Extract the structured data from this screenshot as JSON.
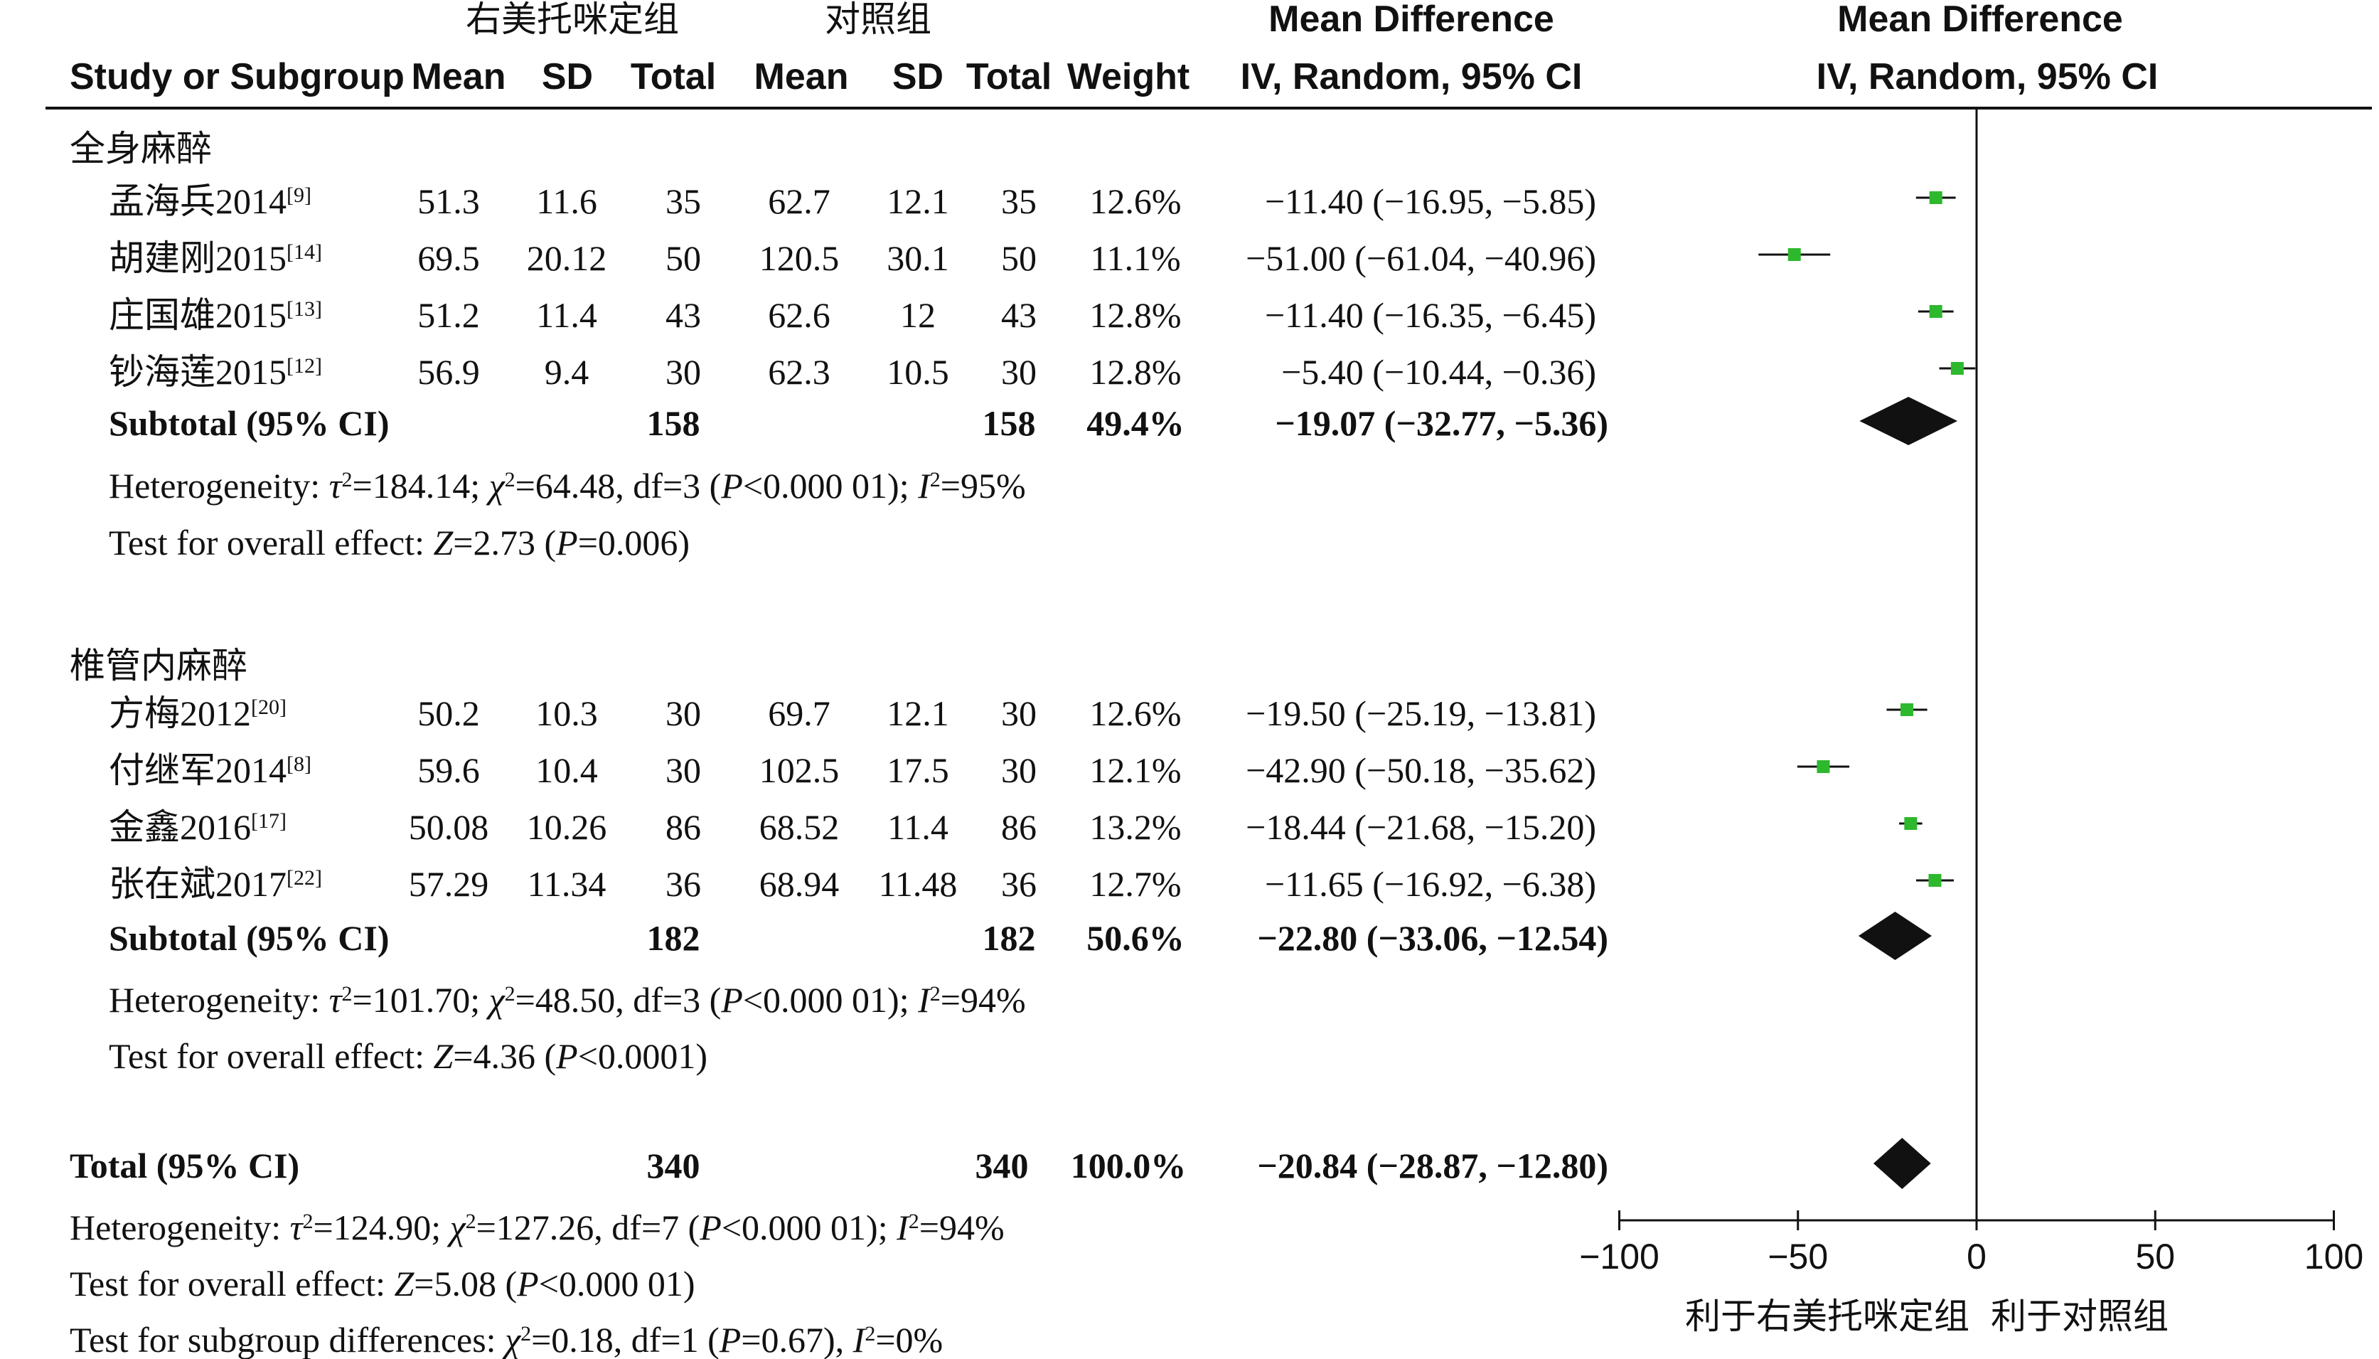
{
  "header": {
    "group_exp": "右美托咪定组",
    "group_ctl": "对照组",
    "md_title_left": "Mean Difference",
    "md_sub_left": "IV, Random, 95% CI",
    "md_title_right": "Mean Difference",
    "md_sub_right": "IV, Random, 95% CI",
    "col_study": "Study or Subgroup",
    "col_mean_exp": "Mean",
    "col_sd_exp": "SD",
    "col_total_exp": "Total",
    "col_mean_ctl": "Mean",
    "col_sd_ctl": "SD",
    "col_total_ctl": "Total",
    "col_weight": "Weight"
  },
  "colors": {
    "square": "#2eb82e",
    "diamond": "#111111",
    "line": "#111111"
  },
  "subgroups": [
    {
      "name": "全身麻醉",
      "studies": [
        {
          "study": "孟海兵2014",
          "ref": "[9]",
          "mean_e": "51.3",
          "sd_e": "11.6",
          "n_e": "35",
          "mean_c": "62.7",
          "sd_c": "12.1",
          "n_c": "35",
          "weight": "12.6%",
          "ci_text": "−11.40 (−16.95, −5.85)",
          "md": -11.4,
          "lo": -16.95,
          "hi": -5.85
        },
        {
          "study": "胡建刚2015",
          "ref": "[14]",
          "mean_e": "69.5",
          "sd_e": "20.12",
          "n_e": "50",
          "mean_c": "120.5",
          "sd_c": "30.1",
          "n_c": "50",
          "weight": "11.1%",
          "ci_text": "−51.00 (−61.04, −40.96)",
          "md": -51.0,
          "lo": -61.04,
          "hi": -40.96
        },
        {
          "study": "庄国雄2015",
          "ref": "[13]",
          "mean_e": "51.2",
          "sd_e": "11.4",
          "n_e": "43",
          "mean_c": "62.6",
          "sd_c": "12",
          "n_c": "43",
          "weight": "12.8%",
          "ci_text": "−11.40 (−16.35, −6.45)",
          "md": -11.4,
          "lo": -16.35,
          "hi": -6.45
        },
        {
          "study": "钞海莲2015",
          "ref": "[12]",
          "mean_e": "56.9",
          "sd_e": "9.4",
          "n_e": "30",
          "mean_c": "62.3",
          "sd_c": "10.5",
          "n_c": "30",
          "weight": "12.8%",
          "ci_text": "−5.40 (−10.44, −0.36)",
          "md": -5.4,
          "lo": -10.44,
          "hi": -0.36
        }
      ],
      "subtotal": {
        "label": "Subtotal (95% CI)",
        "n_e": "158",
        "n_c": "158",
        "weight": "49.4%",
        "ci_text": "−19.07 (−32.77, −5.36)",
        "md": -19.07,
        "lo": -32.77,
        "hi": -5.36
      },
      "heterogeneity": {
        "prefix": "Heterogeneity: ",
        "tau": "τ",
        "tau_sup": "2",
        "tau_val": "=184.14; ",
        "chi": "χ",
        "chi_sup": "2",
        "chi_val": "=64.48, df=3 (",
        "p": "P",
        "p_val": "<0.000 01); ",
        "i": "I",
        "i_sup": "2",
        "i_val": "=95%"
      },
      "overall": {
        "prefix": "Test for overall effect: ",
        "z": "Z",
        "z_val": "=2.73 (",
        "p": "P",
        "p_val": "=0.006)"
      }
    },
    {
      "name": "椎管内麻醉",
      "studies": [
        {
          "study": "方梅2012",
          "ref": "[20]",
          "mean_e": "50.2",
          "sd_e": "10.3",
          "n_e": "30",
          "mean_c": "69.7",
          "sd_c": "12.1",
          "n_c": "30",
          "weight": "12.6%",
          "ci_text": "−19.50 (−25.19, −13.81)",
          "md": -19.5,
          "lo": -25.19,
          "hi": -13.81
        },
        {
          "study": "付继军2014",
          "ref": "[8]",
          "mean_e": "59.6",
          "sd_e": "10.4",
          "n_e": "30",
          "mean_c": "102.5",
          "sd_c": "17.5",
          "n_c": "30",
          "weight": "12.1%",
          "ci_text": "−42.90 (−50.18, −35.62)",
          "md": -42.9,
          "lo": -50.18,
          "hi": -35.62
        },
        {
          "study": "金鑫2016",
          "ref": "[17]",
          "mean_e": "50.08",
          "sd_e": "10.26",
          "n_e": "86",
          "mean_c": "68.52",
          "sd_c": "11.4",
          "n_c": "86",
          "weight": "13.2%",
          "ci_text": "−18.44 (−21.68, −15.20)",
          "md": -18.44,
          "lo": -21.68,
          "hi": -15.2
        },
        {
          "study": "张在斌2017",
          "ref": "[22]",
          "mean_e": "57.29",
          "sd_e": "11.34",
          "n_e": "36",
          "mean_c": "68.94",
          "sd_c": "11.48",
          "n_c": "36",
          "weight": "12.7%",
          "ci_text": "−11.65 (−16.92, −6.38)",
          "md": -11.65,
          "lo": -16.92,
          "hi": -6.38
        }
      ],
      "subtotal": {
        "label": "Subtotal (95% CI)",
        "n_e": "182",
        "n_c": "182",
        "weight": "50.6%",
        "ci_text": "−22.80 (−33.06, −12.54)",
        "md": -22.8,
        "lo": -33.06,
        "hi": -12.54
      },
      "heterogeneity": {
        "prefix": "Heterogeneity: ",
        "tau": "τ",
        "tau_sup": "2",
        "tau_val": "=101.70; ",
        "chi": "χ",
        "chi_sup": "2",
        "chi_val": "=48.50, df=3 (",
        "p": "P",
        "p_val": "<0.000 01); ",
        "i": "I",
        "i_sup": "2",
        "i_val": "=94%"
      },
      "overall": {
        "prefix": "Test for overall effect: ",
        "z": "Z",
        "z_val": "=4.36 (",
        "p": "P",
        "p_val": "<0.0001)"
      }
    }
  ],
  "total": {
    "label": "Total (95% CI)",
    "n_e": "340",
    "n_c": "340",
    "weight": "100.0%",
    "ci_text": "−20.84 (−28.87, −12.80)",
    "md": -20.84,
    "lo": -28.87,
    "hi": -12.8,
    "heterogeneity": {
      "prefix": "Heterogeneity: ",
      "tau": "τ",
      "tau_sup": "2",
      "tau_val": "=124.90; ",
      "chi": "χ",
      "chi_sup": "2",
      "chi_val": "=127.26, df=7 (",
      "p": "P",
      "p_val": "<0.000 01); ",
      "i": "I",
      "i_sup": "2",
      "i_val": "=94%"
    },
    "overall": {
      "prefix": "Test for overall effect: ",
      "z": "Z",
      "z_val": "=5.08 (",
      "p": "P",
      "p_val": "<0.000 01)"
    },
    "subgroup_diff": {
      "prefix": "Test for subgroup differences: ",
      "chi": "χ",
      "chi_sup": "2",
      "chi_val": "=0.18, df=1 (",
      "p": "P",
      "p_val": "=0.67), ",
      "i": "I",
      "i_sup": "2",
      "i_val": "=0%"
    }
  },
  "axis": {
    "ticks": [
      -100,
      -50,
      0,
      50,
      100
    ],
    "tick_labels": [
      "−100",
      "−50",
      "0",
      "50",
      "100"
    ],
    "favours_left": "利于右美托咪定组",
    "favours_right": "利于对照组"
  },
  "chart_data": {
    "type": "forest",
    "xlim": [
      -100,
      100
    ],
    "null_line": 0,
    "series": [
      {
        "name": "全身麻醉",
        "md": [
          -11.4,
          -51.0,
          -11.4,
          -5.4
        ],
        "lower": [
          -16.95,
          -61.04,
          -16.35,
          -10.44
        ],
        "upper": [
          -5.85,
          -40.96,
          -6.45,
          -0.36
        ],
        "weights": [
          12.6,
          11.1,
          12.8,
          12.8
        ]
      },
      {
        "name": "椎管内麻醉",
        "md": [
          -19.5,
          -42.9,
          -18.44,
          -11.65
        ],
        "lower": [
          -25.19,
          -50.18,
          -21.68,
          -16.92
        ],
        "upper": [
          -13.81,
          -35.62,
          -15.2,
          -6.38
        ],
        "weights": [
          12.6,
          12.1,
          13.2,
          12.7
        ]
      }
    ],
    "subtotals": [
      {
        "md": -19.07,
        "lower": -32.77,
        "upper": -5.36,
        "weight": 49.4
      },
      {
        "md": -22.8,
        "lower": -33.06,
        "upper": -12.54,
        "weight": 50.6
      }
    ],
    "overall": {
      "md": -20.84,
      "lower": -28.87,
      "upper": -12.8,
      "weight": 100.0
    },
    "grid": false
  }
}
